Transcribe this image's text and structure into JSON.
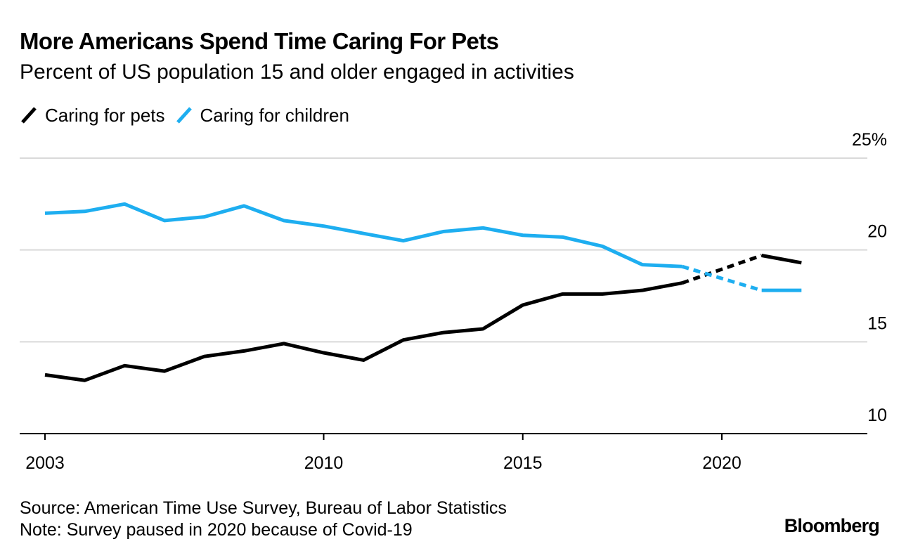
{
  "chart_data": {
    "type": "line",
    "title": "More Americans Spend Time Caring For Pets",
    "subtitle": "Percent of US population 15 and older engaged in activities",
    "xlabel": "",
    "ylabel": "",
    "x": [
      2003,
      2004,
      2005,
      2006,
      2007,
      2008,
      2009,
      2010,
      2011,
      2012,
      2013,
      2014,
      2015,
      2016,
      2017,
      2018,
      2019,
      2021,
      2022
    ],
    "series": [
      {
        "name": "Caring for pets",
        "color": "#000000",
        "values": [
          13.2,
          12.9,
          13.7,
          13.4,
          14.2,
          14.5,
          14.9,
          14.4,
          14.0,
          15.1,
          15.5,
          15.7,
          17.0,
          17.6,
          17.6,
          17.8,
          18.2,
          19.7,
          19.3
        ]
      },
      {
        "name": "Caring for children",
        "color": "#1eaef0",
        "values": [
          22.0,
          22.1,
          22.5,
          21.6,
          21.8,
          22.4,
          21.6,
          21.3,
          20.9,
          20.5,
          21.0,
          21.2,
          20.8,
          20.7,
          20.2,
          19.2,
          19.1,
          17.8,
          17.8
        ]
      }
    ],
    "gap_note": "Dashed segments connect 2019 to 2021 (no 2020 data)",
    "ylim": [
      10,
      25
    ],
    "yticks": [
      10,
      15,
      20,
      25
    ],
    "ytick_labels": [
      "10",
      "15",
      "20",
      "25%"
    ],
    "xlim": [
      2002.4,
      2023.7
    ],
    "xticks": [
      2003,
      2010,
      2015,
      2020
    ],
    "xtick_labels": [
      "2003",
      "2010",
      "2015",
      "2020"
    ],
    "grid": true,
    "legend_position": "top-left"
  },
  "legend": {
    "pets_label": "Caring for pets",
    "children_label": "Caring for children"
  },
  "footer": {
    "source": "Source: American Time Use Survey, Bureau of Labor Statistics",
    "note": "Note: Survey paused in 2020 because of Covid-19"
  },
  "brand": "Bloomberg",
  "colors": {
    "pets": "#000000",
    "children": "#1eaef0",
    "grid": "#d9d9d9",
    "axis": "#000000"
  }
}
